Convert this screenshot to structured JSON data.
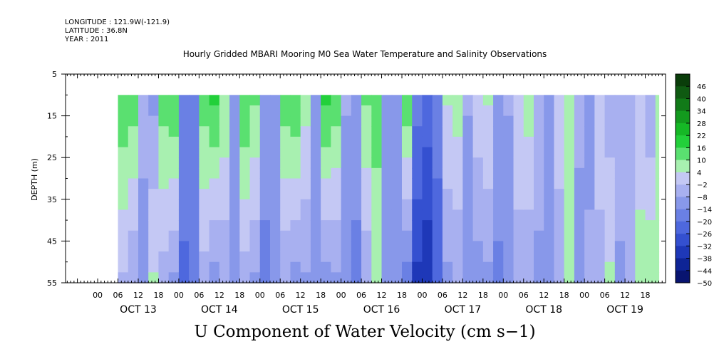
{
  "header": {
    "longitude": "LONGITUDE : 121.9W(-121.9)",
    "latitude": "LATITUDE : 36.8N",
    "year": "YEAR : 2011"
  },
  "chart_data": {
    "type": "heatmap",
    "title": "Hourly Gridded MBARI Mooring M0 Sea Water Temperature and Salinity Observations",
    "bottom_label": "U Component of Water Velocity (cm s−1)",
    "ylabel": "DEPTH (m)",
    "ylim": [
      5,
      55
    ],
    "y_inverted": true,
    "y_ticks": [
      5,
      15,
      25,
      35,
      45,
      55
    ],
    "y_tick_labels": [
      "5",
      "15",
      "25",
      "35",
      "45",
      "55"
    ],
    "hour_tick_labels": [
      "00",
      "06",
      "12",
      "18",
      "00",
      "06",
      "12",
      "18",
      "00",
      "06",
      "12",
      "18",
      "00",
      "06",
      "12",
      "18",
      "00",
      "06",
      "12",
      "18",
      "00",
      "06",
      "12",
      "18",
      "00",
      "06",
      "12",
      "18"
    ],
    "day_labels": [
      "OCT 13",
      "OCT 14",
      "OCT 15",
      "OCT 16",
      "OCT 17",
      "OCT 18",
      "OCT 19"
    ],
    "data_depth_range": [
      10,
      55
    ],
    "data_time_range_hours": [
      6,
      166
    ],
    "colorbar": {
      "min": -50,
      "max": 50,
      "labels": [
        "46",
        "40",
        "34",
        "28",
        "22",
        "16",
        "10",
        "4",
        "−2",
        "−8",
        "−14",
        "−20",
        "−26",
        "−32",
        "−38",
        "−44",
        "−50"
      ],
      "colors": [
        "#0a3d0a",
        "#0f5a12",
        "#117a18",
        "#139a1e",
        "#16b826",
        "#22d03a",
        "#5ae070",
        "#a8f0b0",
        "#c4c8f4",
        "#a8b0f0",
        "#8898ea",
        "#6a80e4",
        "#4e68de",
        "#3450d0",
        "#1e38b8",
        "#0e2496",
        "#081470"
      ]
    },
    "column_profiles": {
      "hours": [
        6,
        9,
        12,
        15,
        18,
        21,
        24,
        27,
        30,
        33,
        36,
        39,
        42,
        45,
        48,
        51,
        54,
        57,
        60,
        63,
        66,
        69,
        72,
        75,
        78,
        81,
        84,
        87,
        90,
        93,
        96,
        99,
        102,
        105,
        108,
        111,
        114,
        117,
        120,
        123,
        126,
        129,
        132,
        135,
        138,
        141,
        144,
        147,
        150,
        153,
        156,
        159,
        162,
        165
      ],
      "surface": [
        14,
        12,
        -6,
        -10,
        12,
        14,
        -16,
        -20,
        12,
        16,
        8,
        -12,
        14,
        10,
        -12,
        -14,
        12,
        14,
        6,
        -10,
        16,
        12,
        -8,
        -12,
        10,
        12,
        -10,
        -12,
        14,
        -18,
        -22,
        -16,
        4,
        6,
        -8,
        2,
        4,
        -10,
        -8,
        2,
        6,
        -6,
        -12,
        2,
        4,
        -8,
        -10,
        2,
        -6,
        -4,
        -6,
        -2,
        -8,
        4
      ],
      "deep": [
        -4,
        -8,
        -12,
        4,
        -6,
        -10,
        -22,
        -20,
        -6,
        -12,
        -8,
        -14,
        -6,
        -10,
        -16,
        -14,
        -8,
        -12,
        -10,
        -14,
        -12,
        -10,
        -14,
        -16,
        -8,
        4,
        -12,
        -14,
        -18,
        -34,
        -38,
        -26,
        -10,
        -8,
        -14,
        -12,
        -10,
        -16,
        -14,
        -6,
        -8,
        -10,
        -12,
        -8,
        6,
        -10,
        -8,
        -6,
        4,
        -10,
        -8,
        6,
        8,
        6
      ]
    }
  }
}
